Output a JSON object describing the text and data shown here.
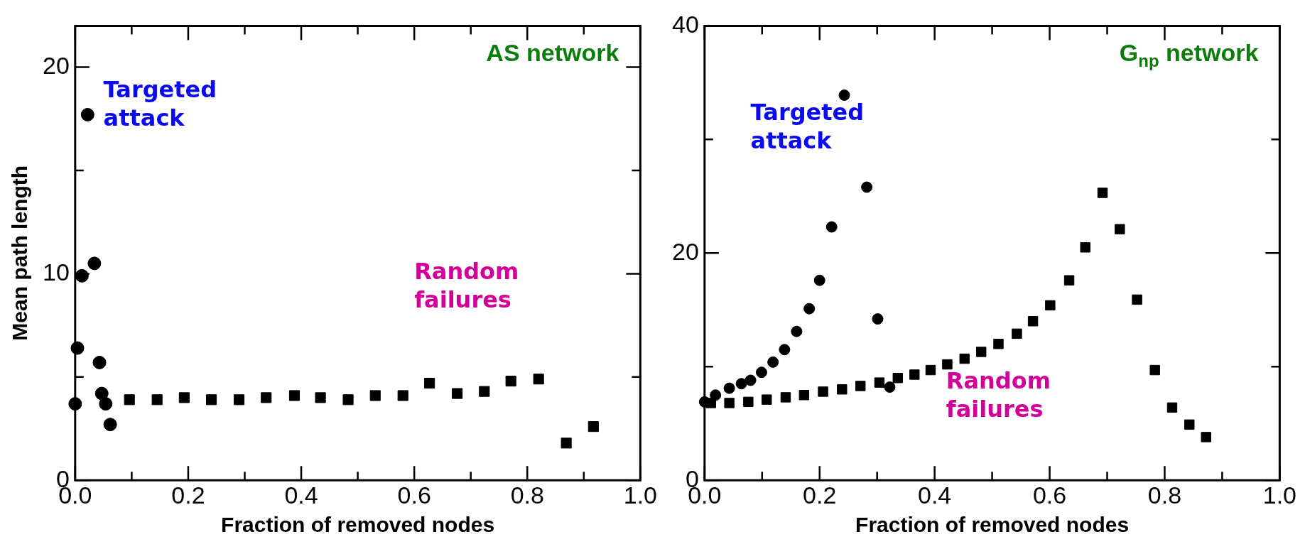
{
  "chart_data": [
    {
      "type": "scatter",
      "title": "AS network",
      "xlabel": "Fraction of removed nodes",
      "ylabel": "Mean path length",
      "xlim": [
        0,
        1
      ],
      "ylim": [
        0,
        22
      ],
      "xticks": [
        {
          "value": 0,
          "label": "0.0"
        },
        {
          "value": 0.1,
          "label": null
        },
        {
          "value": 0.2,
          "label": "0.2"
        },
        {
          "value": 0.3,
          "label": null
        },
        {
          "value": 0.4,
          "label": "0.4"
        },
        {
          "value": 0.5,
          "label": null
        },
        {
          "value": 0.6,
          "label": "0.6"
        },
        {
          "value": 0.7,
          "label": null
        },
        {
          "value": 0.8,
          "label": "0.8"
        },
        {
          "value": 0.9,
          "label": null
        },
        {
          "value": 1,
          "label": "1.0"
        }
      ],
      "yticks": [
        0,
        {
          "value": 5,
          "label": null
        },
        10,
        {
          "value": 15,
          "label": null
        },
        20
      ],
      "grid": false,
      "series": [
        {
          "name": "Targeted attack",
          "color": "#000000",
          "marker": "circle",
          "x": [
            0.022,
            0.012,
            0.034,
            0.004,
            0.043,
            0.0,
            0.047,
            0.054,
            0.062
          ],
          "values": [
            17.7,
            9.9,
            10.5,
            6.4,
            5.7,
            3.7,
            4.2,
            3.7,
            2.7
          ]
        },
        {
          "name": "Random failures",
          "color": "#000000",
          "marker": "square",
          "x": [
            0.096,
            0.145,
            0.193,
            0.241,
            0.29,
            0.338,
            0.388,
            0.434,
            0.483,
            0.531,
            0.58,
            0.627,
            0.676,
            0.724,
            0.771,
            0.82,
            0.869,
            0.917
          ],
          "values": [
            3.9,
            3.9,
            4.0,
            3.9,
            3.9,
            4.0,
            4.1,
            4.0,
            3.9,
            4.1,
            4.1,
            4.7,
            4.2,
            4.3,
            4.8,
            4.9,
            1.8,
            2.6
          ]
        }
      ]
    },
    {
      "type": "scatter",
      "title": "G$_{np}$ network",
      "xlabel": "Fraction of removed nodes",
      "xlim": [
        0,
        1
      ],
      "ylim": [
        0,
        40
      ],
      "xticks": [
        {
          "value": 0,
          "label": "0.0"
        },
        {
          "value": 0.1,
          "label": null
        },
        {
          "value": 0.2,
          "label": "0.2"
        },
        {
          "value": 0.3,
          "label": null
        },
        {
          "value": 0.4,
          "label": "0.4"
        },
        {
          "value": 0.5,
          "label": null
        },
        {
          "value": 0.6,
          "label": "0.6"
        },
        {
          "value": 0.7,
          "label": null
        },
        {
          "value": 0.8,
          "label": "0.8"
        },
        {
          "value": 0.9,
          "label": null
        },
        {
          "value": 1,
          "label": "1.0"
        }
      ],
      "yticks": [
        0,
        {
          "value": 10,
          "label": null
        },
        20,
        {
          "value": 30,
          "label": null
        },
        40
      ],
      "grid": false,
      "series": [
        {
          "name": "Targeted attack",
          "color": "#000000",
          "marker": "circle",
          "x": [
            0.0,
            0.019,
            0.043,
            0.064,
            0.08,
            0.099,
            0.119,
            0.139,
            0.16,
            0.182,
            0.2,
            0.221,
            0.243,
            0.282,
            0.301,
            0.322
          ],
          "values": [
            6.9,
            7.5,
            8.1,
            8.5,
            8.8,
            9.5,
            10.4,
            11.5,
            13.1,
            15.1,
            17.6,
            22.3,
            33.9,
            25.8,
            14.2,
            8.2
          ]
        },
        {
          "name": "Random failures",
          "color": "#000000",
          "marker": "square",
          "x": [
            0.011,
            0.043,
            0.076,
            0.108,
            0.141,
            0.173,
            0.206,
            0.239,
            0.271,
            0.304,
            0.336,
            0.365,
            0.393,
            0.422,
            0.452,
            0.481,
            0.511,
            0.543,
            0.571,
            0.601,
            0.634,
            0.662,
            0.692,
            0.722,
            0.752,
            0.783,
            0.813,
            0.843,
            0.872
          ],
          "values": [
            6.8,
            6.8,
            6.9,
            7.1,
            7.3,
            7.5,
            7.8,
            8.0,
            8.3,
            8.6,
            9.0,
            9.3,
            9.7,
            10.2,
            10.7,
            11.3,
            12.0,
            12.9,
            14.0,
            15.4,
            17.6,
            20.5,
            25.3,
            22.1,
            15.9,
            9.7,
            6.4,
            4.9,
            3.8
          ]
        }
      ]
    }
  ]
}
